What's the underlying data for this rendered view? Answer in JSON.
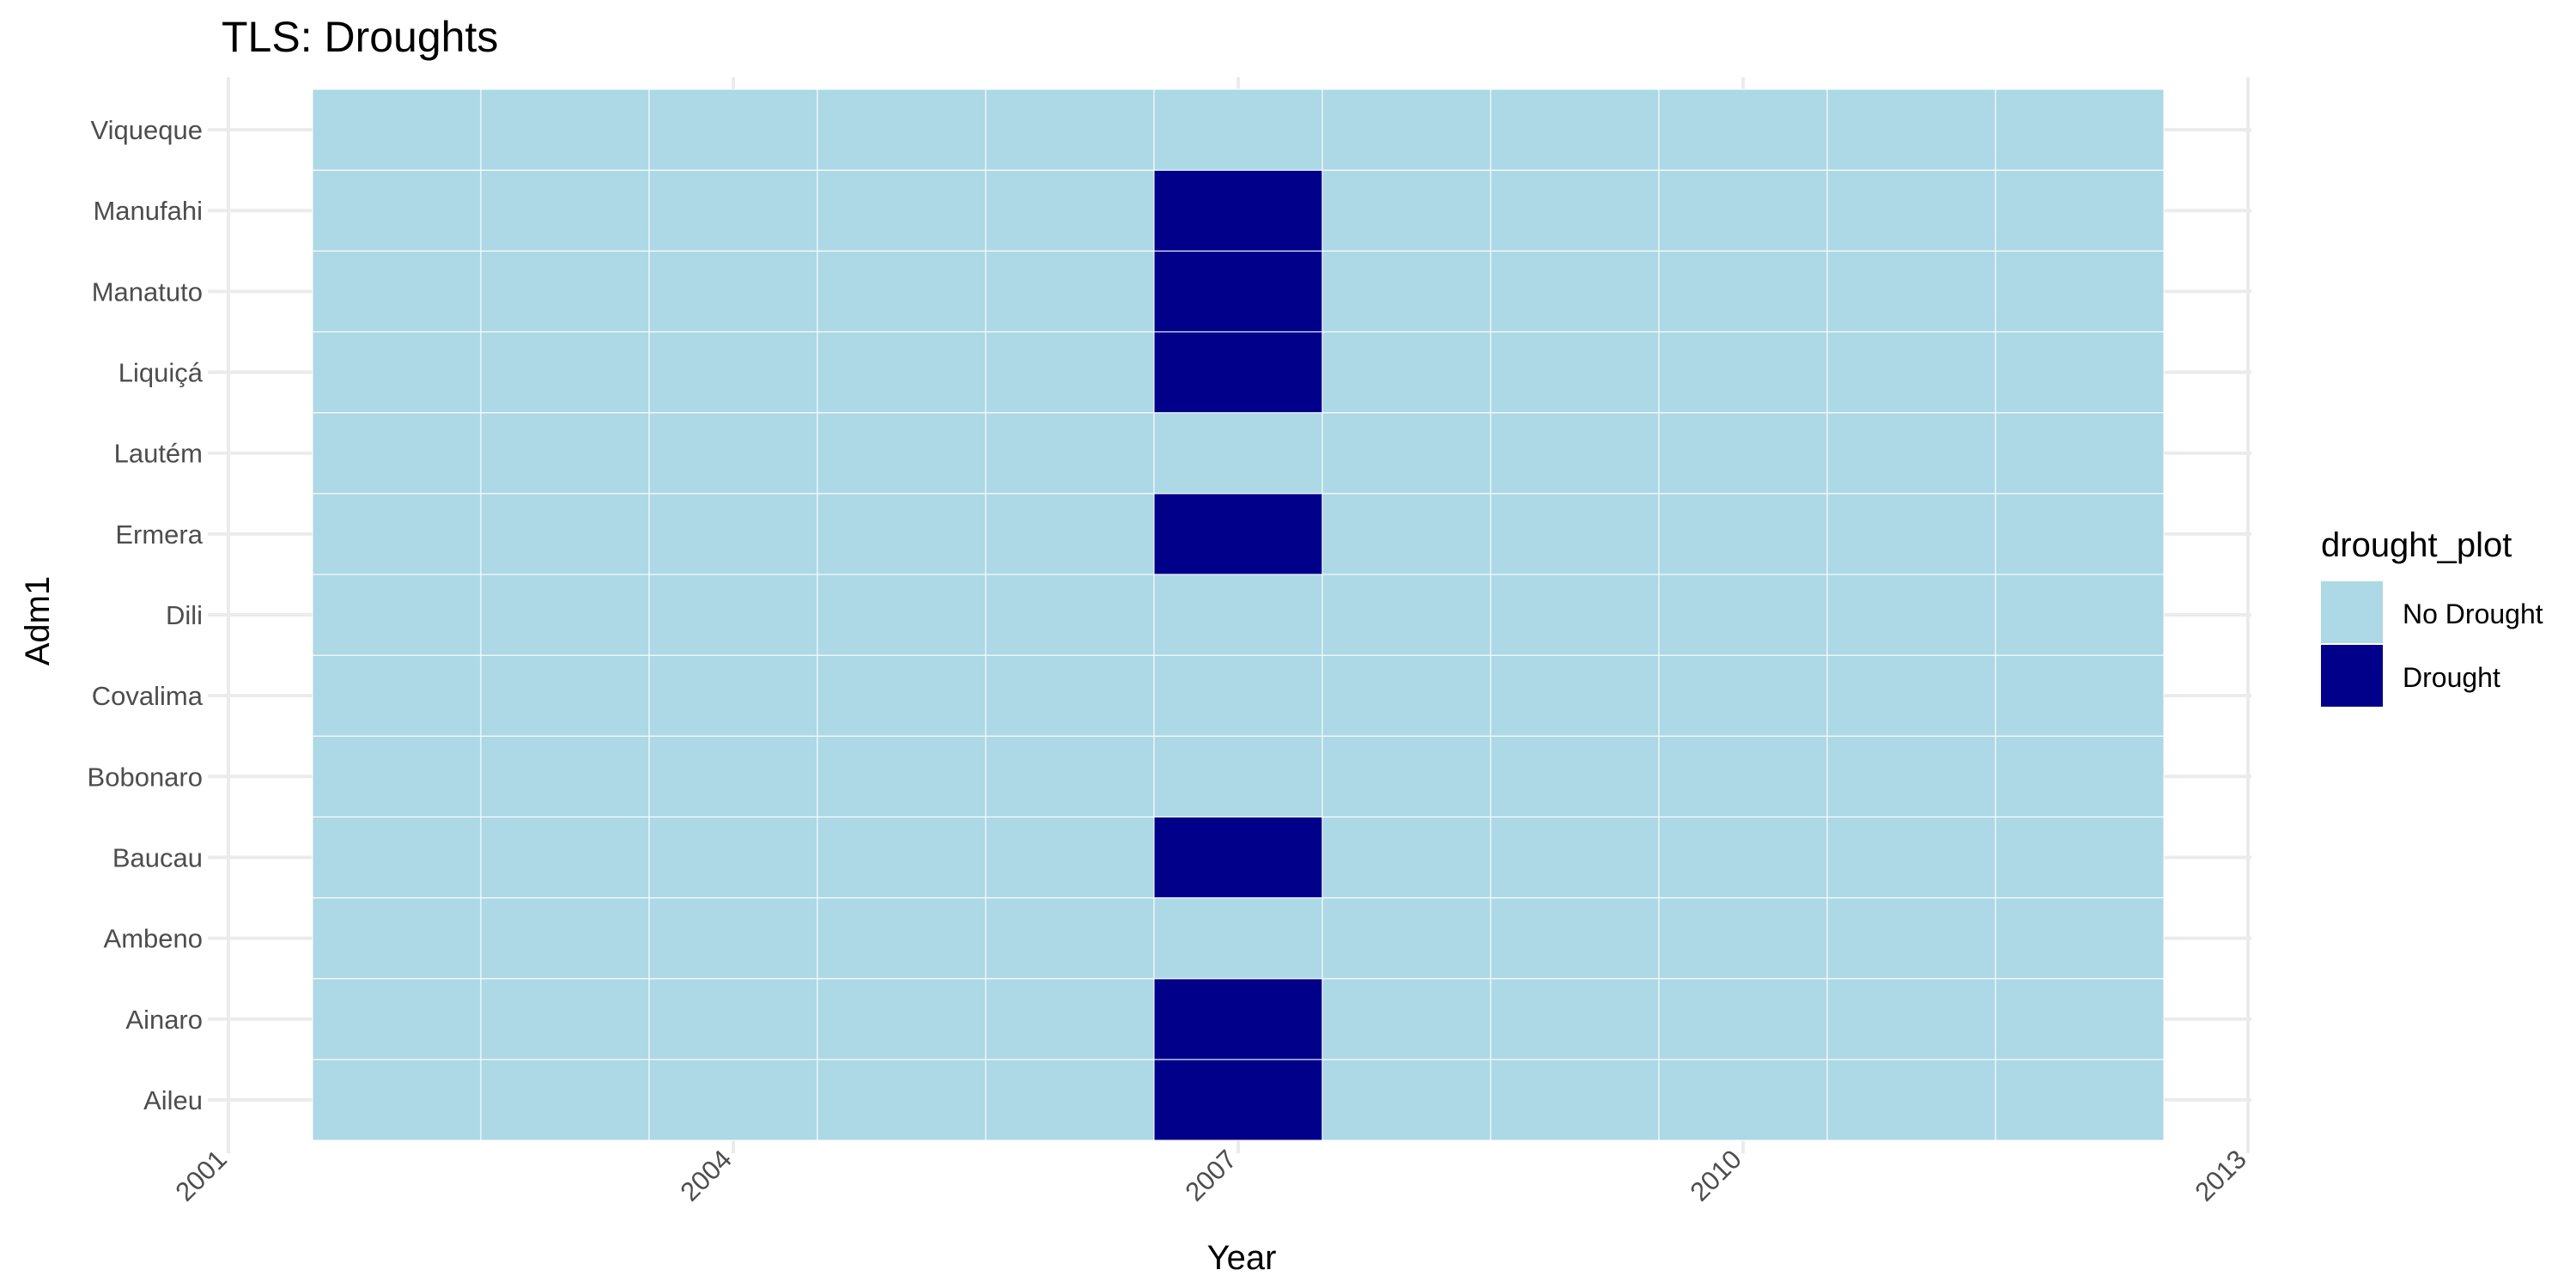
{
  "chart_data": {
    "type": "heatmap",
    "title": "TLS: Droughts",
    "xlabel": "Year",
    "ylabel": "Adm1",
    "x_ticks": [
      2001,
      2004,
      2007,
      2010,
      2013
    ],
    "xlim": [
      2001,
      2013
    ],
    "years": [
      2002,
      2003,
      2004,
      2005,
      2006,
      2007,
      2008,
      2009,
      2010,
      2011,
      2012
    ],
    "regions": [
      "Aileu",
      "Ainaro",
      "Ambeno",
      "Baucau",
      "Bobonaro",
      "Covalima",
      "Dili",
      "Ermera",
      "Lautém",
      "Liquiçá",
      "Manatuto",
      "Manufahi",
      "Viqueque"
    ],
    "drought": {
      "Aileu": [
        2007
      ],
      "Ainaro": [
        2007
      ],
      "Ambeno": [],
      "Baucau": [
        2007
      ],
      "Bobonaro": [],
      "Covalima": [],
      "Dili": [],
      "Ermera": [
        2007
      ],
      "Lautém": [],
      "Liquiçá": [
        2007
      ],
      "Manatuto": [
        2007
      ],
      "Manufahi": [
        2007
      ],
      "Viqueque": []
    },
    "legend": {
      "title": "drought_plot",
      "entries": [
        {
          "label": "No Drought",
          "color": "#add8e6"
        },
        {
          "label": "Drought",
          "color": "#00008b"
        }
      ],
      "placement": "right"
    },
    "grid": true
  }
}
